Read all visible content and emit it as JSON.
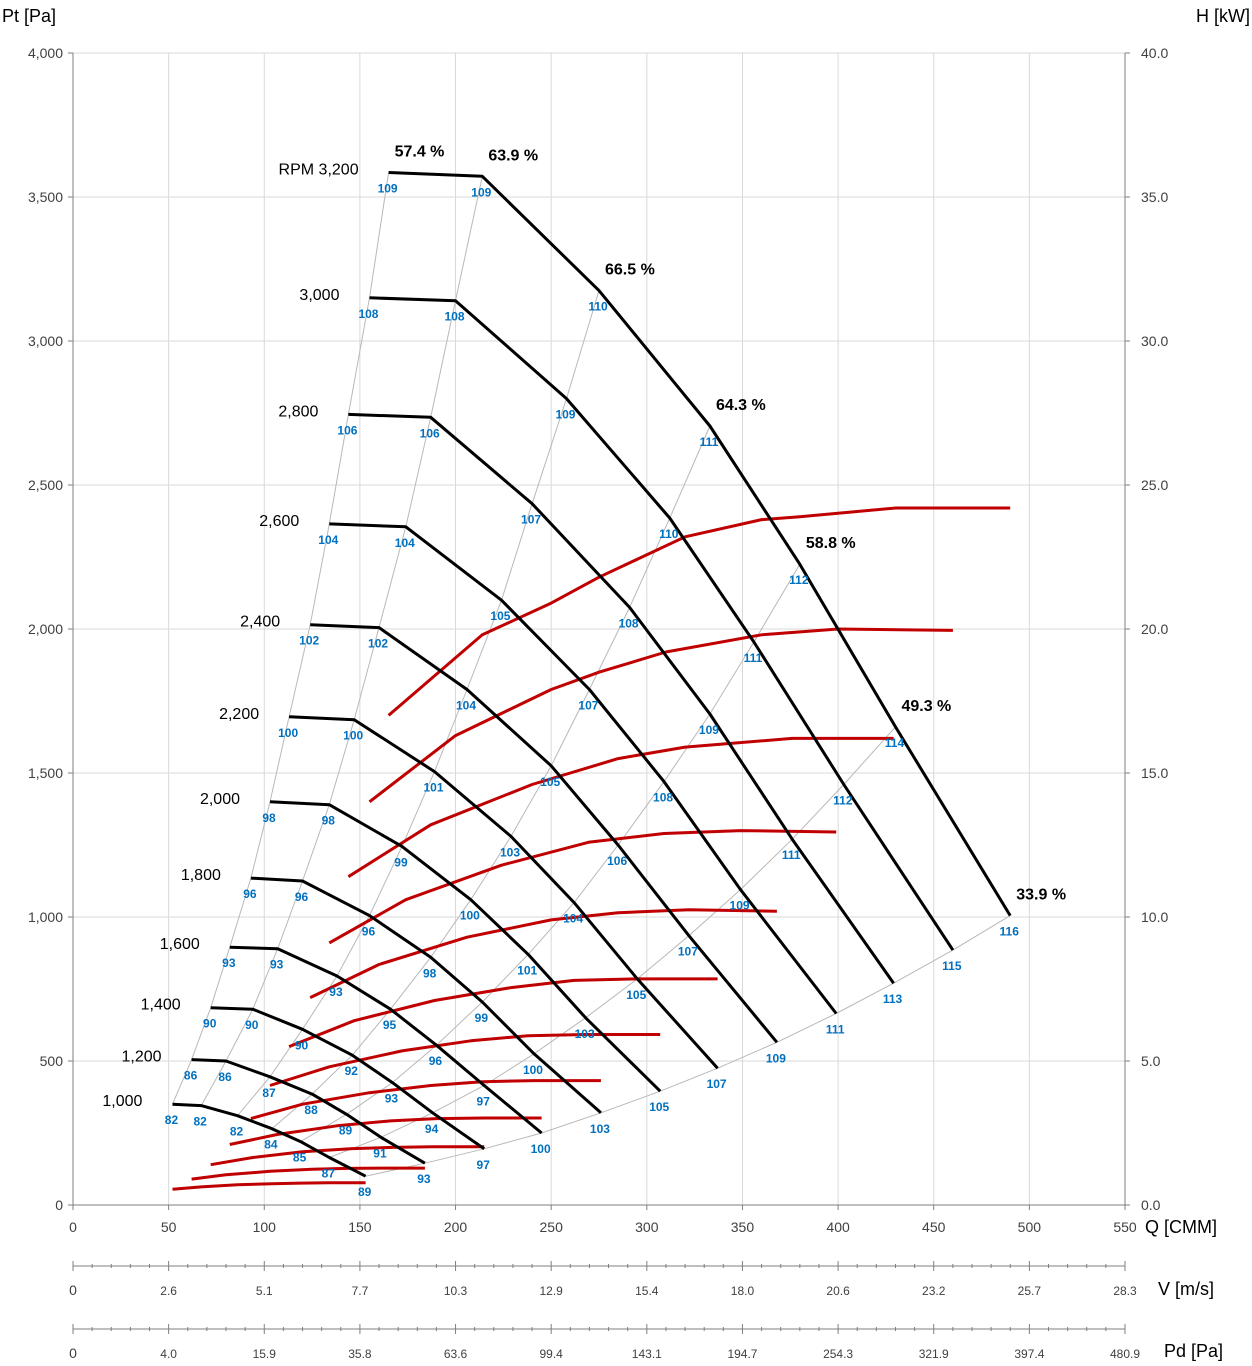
{
  "colors": {
    "pressure": "#000000",
    "power": "#C00000",
    "noise": "#0070C0",
    "grid": "#d9d9d9",
    "axis": "#7f7f7f",
    "iso": "#b8b8b8"
  },
  "chart_data": {
    "type": "line",
    "axes": {
      "x": {
        "label": "Q [CMM]",
        "range": [
          0,
          550
        ],
        "ticks": [
          "0",
          "50",
          "100",
          "150",
          "200",
          "250",
          "300",
          "350",
          "400",
          "450",
          "500",
          "550"
        ]
      },
      "y_left": {
        "label": "Pt [Pa]",
        "range": [
          0,
          4000
        ],
        "ticks": [
          "0",
          "500",
          "1,000",
          "1,500",
          "2,000",
          "2,500",
          "3,000",
          "3,500",
          "4,000"
        ]
      },
      "y_right": {
        "label": "H [kW]",
        "range": [
          0,
          40
        ],
        "ticks": [
          "0.0",
          "5.0",
          "10.0",
          "15.0",
          "20.0",
          "25.0",
          "30.0",
          "35.0",
          "40.0"
        ]
      },
      "v_axis": {
        "label": "V [m/s]",
        "ticks": [
          "0",
          "2.6",
          "5.1",
          "7.7",
          "10.3",
          "12.9",
          "15.4",
          "18.0",
          "20.6",
          "23.2",
          "25.7",
          "28.3"
        ]
      },
      "pd_axis": {
        "label": "Pd [Pa]",
        "ticks": [
          "0",
          "4.0",
          "15.9",
          "35.8",
          "63.6",
          "99.4",
          "143.1",
          "194.7",
          "254.3",
          "321.9",
          "397.4",
          "480.9"
        ]
      }
    },
    "grid": true,
    "pressure_series": [
      {
        "rpm_label": "RPM 3,200",
        "points": [
          [
            165,
            3585
          ],
          [
            214,
            3572
          ],
          [
            275,
            3175
          ],
          [
            333,
            2705
          ],
          [
            380,
            2225
          ],
          [
            430,
            1660
          ],
          [
            490,
            1005
          ]
        ]
      },
      {
        "rpm_label": "3,000",
        "points": [
          [
            155,
            3150
          ],
          [
            200,
            3140
          ],
          [
            258,
            2800
          ],
          [
            312,
            2385
          ],
          [
            356,
            1955
          ],
          [
            403,
            1460
          ],
          [
            460,
            885
          ]
        ]
      },
      {
        "rpm_label": "2,800",
        "points": [
          [
            144,
            2745
          ],
          [
            187,
            2735
          ],
          [
            240,
            2435
          ],
          [
            291,
            2075
          ],
          [
            333,
            1705
          ],
          [
            376,
            1270
          ],
          [
            429,
            770
          ]
        ]
      },
      {
        "rpm_label": "2,600",
        "points": [
          [
            134,
            2365
          ],
          [
            174,
            2355
          ],
          [
            224,
            2100
          ],
          [
            270,
            1790
          ],
          [
            309,
            1470
          ],
          [
            349,
            1095
          ],
          [
            399,
            665
          ]
        ]
      },
      {
        "rpm_label": "2,400",
        "points": [
          [
            124,
            2015
          ],
          [
            160,
            2005
          ],
          [
            206,
            1790
          ],
          [
            250,
            1525
          ],
          [
            285,
            1250
          ],
          [
            322,
            935
          ],
          [
            368,
            565
          ]
        ]
      },
      {
        "rpm_label": "2,200",
        "points": [
          [
            113,
            1695
          ],
          [
            147,
            1685
          ],
          [
            189,
            1505
          ],
          [
            229,
            1280
          ],
          [
            262,
            1050
          ],
          [
            295,
            785
          ],
          [
            337,
            475
          ]
        ]
      },
      {
        "rpm_label": "2,000",
        "points": [
          [
            103,
            1400
          ],
          [
            134,
            1390
          ],
          [
            172,
            1245
          ],
          [
            208,
            1060
          ],
          [
            238,
            870
          ],
          [
            268,
            650
          ],
          [
            307,
            395
          ]
        ]
      },
      {
        "rpm_label": "1,800",
        "points": [
          [
            93,
            1135
          ],
          [
            120,
            1125
          ],
          [
            155,
            1005
          ],
          [
            187,
            860
          ],
          [
            214,
            705
          ],
          [
            241,
            525
          ],
          [
            276,
            320
          ]
        ]
      },
      {
        "rpm_label": "1,600",
        "points": [
          [
            82,
            895
          ],
          [
            107,
            890
          ],
          [
            138,
            795
          ],
          [
            166,
            680
          ],
          [
            190,
            555
          ],
          [
            215,
            415
          ],
          [
            245,
            250
          ]
        ]
      },
      {
        "rpm_label": "1,400",
        "points": [
          [
            72,
            685
          ],
          [
            94,
            680
          ],
          [
            120,
            610
          ],
          [
            146,
            520
          ],
          [
            167,
            425
          ],
          [
            188,
            320
          ],
          [
            215,
            195
          ]
        ]
      },
      {
        "rpm_label": "1,200",
        "points": [
          [
            62,
            505
          ],
          [
            80,
            500
          ],
          [
            103,
            445
          ],
          [
            125,
            385
          ],
          [
            143,
            315
          ],
          [
            161,
            235
          ],
          [
            184,
            145
          ]
        ]
      },
      {
        "rpm_label": "1,000",
        "points": [
          [
            52,
            350
          ],
          [
            67,
            345
          ],
          [
            86,
            310
          ],
          [
            104,
            265
          ],
          [
            119,
            220
          ],
          [
            134,
            165
          ],
          [
            153,
            100
          ]
        ]
      }
    ],
    "power_series": [
      {
        "points": [
          [
            165,
            17.0
          ],
          [
            214,
            19.8
          ],
          [
            250,
            20.9
          ],
          [
            275,
            21.8
          ],
          [
            320,
            23.2
          ],
          [
            360,
            23.8
          ],
          [
            380,
            23.9
          ],
          [
            430,
            24.2
          ],
          [
            490,
            24.2
          ]
        ]
      },
      {
        "points": [
          [
            155,
            14.0
          ],
          [
            200,
            16.3
          ],
          [
            250,
            17.9
          ],
          [
            275,
            18.5
          ],
          [
            310,
            19.2
          ],
          [
            360,
            19.8
          ],
          [
            400,
            20.0
          ],
          [
            460,
            19.95
          ]
        ]
      },
      {
        "points": [
          [
            144,
            11.4
          ],
          [
            187,
            13.2
          ],
          [
            240,
            14.6
          ],
          [
            285,
            15.5
          ],
          [
            320,
            15.9
          ],
          [
            376,
            16.2
          ],
          [
            429,
            16.2
          ]
        ]
      },
      {
        "points": [
          [
            134,
            9.1
          ],
          [
            174,
            10.6
          ],
          [
            224,
            11.8
          ],
          [
            270,
            12.6
          ],
          [
            309,
            12.9
          ],
          [
            349,
            13.0
          ],
          [
            399,
            12.95
          ]
        ]
      },
      {
        "points": [
          [
            124,
            7.2
          ],
          [
            160,
            8.35
          ],
          [
            206,
            9.3
          ],
          [
            250,
            9.9
          ],
          [
            285,
            10.15
          ],
          [
            322,
            10.25
          ],
          [
            368,
            10.2
          ]
        ]
      },
      {
        "points": [
          [
            113,
            5.5
          ],
          [
            147,
            6.4
          ],
          [
            189,
            7.1
          ],
          [
            229,
            7.55
          ],
          [
            262,
            7.8
          ],
          [
            295,
            7.85
          ],
          [
            337,
            7.85
          ]
        ]
      },
      {
        "points": [
          [
            103,
            4.15
          ],
          [
            134,
            4.8
          ],
          [
            172,
            5.35
          ],
          [
            208,
            5.7
          ],
          [
            238,
            5.88
          ],
          [
            268,
            5.92
          ],
          [
            307,
            5.92
          ]
        ]
      },
      {
        "points": [
          [
            93,
            3.0
          ],
          [
            120,
            3.5
          ],
          [
            155,
            3.9
          ],
          [
            187,
            4.15
          ],
          [
            214,
            4.28
          ],
          [
            241,
            4.32
          ],
          [
            276,
            4.32
          ]
        ]
      },
      {
        "points": [
          [
            82,
            2.1
          ],
          [
            107,
            2.45
          ],
          [
            138,
            2.75
          ],
          [
            166,
            2.92
          ],
          [
            190,
            3.0
          ],
          [
            215,
            3.02
          ],
          [
            245,
            3.02
          ]
        ]
      },
      {
        "points": [
          [
            72,
            1.4
          ],
          [
            94,
            1.65
          ],
          [
            120,
            1.85
          ],
          [
            146,
            1.96
          ],
          [
            167,
            2.0
          ],
          [
            188,
            2.02
          ],
          [
            215,
            2.02
          ]
        ]
      },
      {
        "points": [
          [
            62,
            0.9
          ],
          [
            80,
            1.05
          ],
          [
            103,
            1.17
          ],
          [
            125,
            1.24
          ],
          [
            143,
            1.27
          ],
          [
            161,
            1.28
          ],
          [
            184,
            1.28
          ]
        ]
      },
      {
        "points": [
          [
            52,
            0.55
          ],
          [
            67,
            0.63
          ],
          [
            86,
            0.7
          ],
          [
            104,
            0.74
          ],
          [
            119,
            0.76
          ],
          [
            134,
            0.77
          ],
          [
            153,
            0.77
          ]
        ]
      }
    ],
    "efficiency_labels": [
      "57.4 %",
      "63.9 %",
      "66.5 %",
      "64.3 %",
      "58.8 %",
      "49.3 %",
      "33.9 %"
    ],
    "noise_columns": [
      [
        "109",
        "108",
        "106",
        "104",
        "102",
        "100",
        "98",
        "96",
        "93",
        "90",
        "86",
        "82"
      ],
      [
        "109",
        "108",
        "106",
        "104",
        "102",
        "100",
        "98",
        "96",
        "93",
        "90",
        "86",
        "82"
      ],
      [
        "110",
        "109",
        "107",
        "105",
        "104",
        "101",
        "99",
        "96",
        "93",
        "90",
        "87",
        "82"
      ],
      [
        "111",
        "110",
        "108",
        "107",
        "105",
        "103",
        "100",
        "98",
        "95",
        "92",
        "88",
        "84"
      ],
      [
        "112",
        "111",
        "109",
        "108",
        "106",
        "104",
        "101",
        "99",
        "96",
        "93",
        "89",
        "85"
      ],
      [
        "114",
        "112",
        "111",
        "109",
        "107",
        "105",
        "103",
        "100",
        "97",
        "94",
        "91",
        "87"
      ],
      [
        "116",
        "115",
        "113",
        "111",
        "109",
        "107",
        "105",
        "103",
        "100",
        "97",
        "93",
        "89"
      ]
    ]
  }
}
